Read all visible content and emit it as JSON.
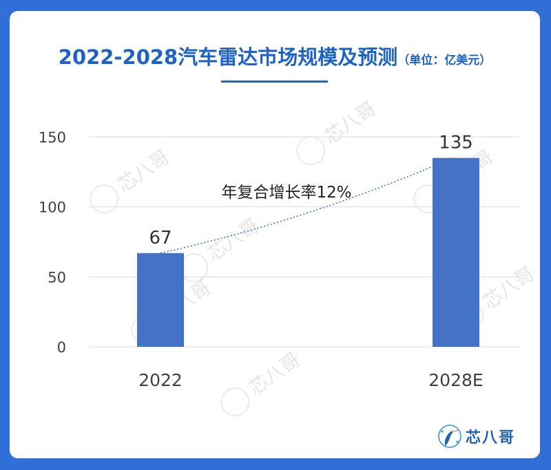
{
  "title": {
    "main": "2022-2028汽车雷达市场规模及预测",
    "unit": "（单位：亿美元）"
  },
  "chart_data": {
    "type": "bar",
    "categories": [
      "2022",
      "2028E"
    ],
    "values": [
      67,
      135
    ],
    "data_labels": [
      "67",
      "135"
    ],
    "ylim": [
      0,
      150
    ],
    "yticks": [
      0,
      50,
      100,
      150
    ],
    "grid": true,
    "bar_color": "#4472c4",
    "annotation": {
      "text": "年复合增长率12%",
      "style": "dotted trend line connecting bar tops"
    }
  },
  "brand": {
    "name": "芯八哥",
    "logo_icon": "kingfisher-bird-icon"
  },
  "watermark": {
    "text": "芯八哥",
    "style": "diagonal faint repeated logo"
  }
}
